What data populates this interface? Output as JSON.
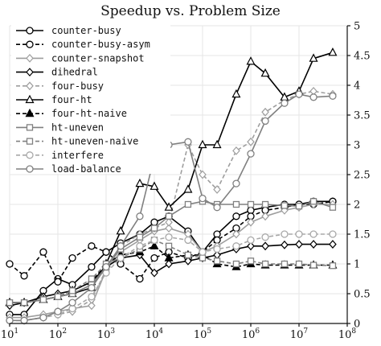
{
  "chart_data": {
    "type": "line",
    "title": "Speedup vs. Problem Size",
    "xlabel": "",
    "ylabel": "",
    "xscale": "log",
    "xlim": [
      10,
      100000000
    ],
    "ylim": [
      0,
      5
    ],
    "yaxis_position": "right",
    "grid": true,
    "legend_position": "top-left",
    "x_tick_labels": [
      {
        "base": "10",
        "exp": "1"
      },
      {
        "base": "10",
        "exp": "2"
      },
      {
        "base": "10",
        "exp": "3"
      },
      {
        "base": "10",
        "exp": "4"
      },
      {
        "base": "10",
        "exp": "5"
      },
      {
        "base": "10",
        "exp": "6"
      },
      {
        "base": "10",
        "exp": "7"
      },
      {
        "base": "10",
        "exp": "8"
      }
    ],
    "x_tick_values": [
      10,
      100,
      1000,
      10000,
      100000,
      1000000,
      10000000,
      100000000
    ],
    "y_tick_labels": [
      "0",
      "0.5",
      "1",
      "1.5",
      "2",
      "2.5",
      "3",
      "3.5",
      "4",
      "4.5",
      "5"
    ],
    "y_tick_values": [
      0,
      0.5,
      1,
      1.5,
      2,
      2.5,
      3,
      3.5,
      4,
      4.5,
      5
    ],
    "series": [
      {
        "name": "counter-busy",
        "color": "#000000",
        "dash": "solid",
        "marker": "circle",
        "marker_fill": "white",
        "x": [
          10,
          20,
          50,
          100,
          200,
          500,
          1000,
          2000,
          5000,
          10000,
          20000,
          50000,
          100000,
          200000,
          500000,
          1000000,
          2000000,
          5000000,
          10000000,
          20000000,
          50000000
        ],
        "y": [
          0.15,
          0.15,
          0.55,
          0.75,
          0.65,
          0.95,
          1.2,
          1.35,
          1.5,
          1.7,
          1.8,
          1.55,
          1.2,
          1.5,
          1.8,
          1.9,
          1.95,
          2.0,
          2.0,
          2.05,
          2.05
        ]
      },
      {
        "name": "counter-busy-asym",
        "color": "#000000",
        "dash": "dashed",
        "marker": "circle",
        "marker_fill": "white",
        "x": [
          10,
          20,
          50,
          100,
          200,
          500,
          1000,
          2000,
          5000,
          10000,
          20000,
          50000,
          100000,
          200000,
          500000,
          1000000,
          2000000,
          5000000,
          10000000,
          20000000,
          50000000
        ],
        "y": [
          1.0,
          0.8,
          1.2,
          0.7,
          1.1,
          1.3,
          1.2,
          1.0,
          0.75,
          1.1,
          1.2,
          1.1,
          1.2,
          1.4,
          1.6,
          1.8,
          1.9,
          1.95,
          2.0,
          2.0,
          2.05
        ]
      },
      {
        "name": "counter-snapshot",
        "color": "#9e9e9e",
        "dash": "solid",
        "marker": "diamond",
        "marker_fill": "white",
        "x": [
          10,
          20,
          50,
          100,
          200,
          500,
          1000,
          2000,
          5000,
          10000,
          20000,
          50000,
          100000,
          200000,
          500000,
          1000000,
          2000000,
          5000000,
          10000000,
          20000000,
          50000000
        ],
        "y": [
          0.1,
          0.1,
          0.15,
          0.2,
          0.25,
          0.3,
          0.9,
          1.2,
          1.4,
          1.55,
          1.6,
          1.5,
          1.2,
          1.3,
          1.5,
          1.7,
          1.8,
          1.9,
          1.95,
          2.0,
          2.0
        ]
      },
      {
        "name": "dihedral",
        "color": "#000000",
        "dash": "solid",
        "marker": "diamond",
        "marker_fill": "white",
        "x": [
          10,
          20,
          50,
          100,
          200,
          500,
          1000,
          2000,
          5000,
          10000,
          20000,
          50000,
          100000,
          200000,
          500000,
          1000000,
          2000000,
          5000000,
          10000000,
          20000000,
          50000000
        ],
        "y": [
          0.3,
          0.35,
          0.45,
          0.5,
          0.55,
          0.7,
          0.95,
          1.1,
          1.15,
          0.85,
          1.0,
          1.05,
          1.1,
          1.15,
          1.25,
          1.3,
          1.3,
          1.32,
          1.33,
          1.33,
          1.33
        ]
      },
      {
        "name": "four-busy",
        "color": "#9e9e9e",
        "dash": "dashed",
        "marker": "diamond",
        "marker_fill": "white",
        "x": [
          10,
          20,
          50,
          100,
          200,
          500,
          1000,
          2000,
          5000,
          10000,
          20000,
          50000,
          100000,
          200000,
          500000,
          1000000,
          2000000,
          5000000,
          10000000,
          20000000,
          50000000
        ],
        "y": [
          0.05,
          0.05,
          0.1,
          0.15,
          0.2,
          0.4,
          0.9,
          1.3,
          1.5,
          1.6,
          1.7,
          3.0,
          2.5,
          2.25,
          2.9,
          3.05,
          3.55,
          3.75,
          3.85,
          3.9,
          3.85
        ]
      },
      {
        "name": "four-ht",
        "color": "#000000",
        "dash": "solid",
        "marker": "triangle",
        "marker_fill": "white",
        "x": [
          10,
          20,
          50,
          100,
          200,
          500,
          1000,
          2000,
          5000,
          10000,
          20000,
          50000,
          100000,
          200000,
          500000,
          1000000,
          2000000,
          5000000,
          10000000,
          20000000,
          50000000
        ],
        "y": [
          0.35,
          0.35,
          0.4,
          0.45,
          0.5,
          0.6,
          1.0,
          1.55,
          2.35,
          2.3,
          1.95,
          2.25,
          3.0,
          3.0,
          3.85,
          4.4,
          4.2,
          3.8,
          3.9,
          4.45,
          4.55
        ]
      },
      {
        "name": "four-ht-naive",
        "color": "#000000",
        "dash": "dashed",
        "marker": "triangle",
        "marker_fill": "#000000",
        "x": [
          10,
          20,
          50,
          100,
          200,
          500,
          1000,
          2000,
          5000,
          10000,
          20000,
          50000,
          100000,
          200000,
          500000,
          1000000,
          2000000,
          5000000,
          10000000,
          20000000,
          50000000
        ],
        "y": [
          0.35,
          0.35,
          0.4,
          0.45,
          0.55,
          0.7,
          1.0,
          1.15,
          1.2,
          1.3,
          1.1,
          1.15,
          1.15,
          1.0,
          0.95,
          1.0,
          0.98,
          0.98,
          0.98,
          0.98,
          0.98
        ]
      },
      {
        "name": "ht-uneven",
        "color": "#808080",
        "dash": "solid",
        "marker": "square",
        "marker_fill": "white",
        "x": [
          10,
          20,
          50,
          100,
          200,
          500,
          1000,
          2000,
          5000,
          10000,
          20000,
          50000,
          100000,
          200000,
          500000,
          1000000,
          2000000,
          5000000,
          10000000,
          20000000,
          50000000
        ],
        "y": [
          0.35,
          0.35,
          0.4,
          0.45,
          0.5,
          0.65,
          0.95,
          1.25,
          1.45,
          1.6,
          1.8,
          2.0,
          2.05,
          2.0,
          2.0,
          2.0,
          2.0,
          1.98,
          1.97,
          2.05,
          1.95
        ]
      },
      {
        "name": "ht-uneven-naive",
        "color": "#808080",
        "dash": "dashed",
        "marker": "square",
        "marker_fill": "white",
        "x": [
          10,
          20,
          50,
          100,
          200,
          500,
          1000,
          2000,
          5000,
          10000,
          20000,
          50000,
          100000,
          200000,
          500000,
          1000000,
          2000000,
          5000000,
          10000000,
          20000000,
          50000000
        ],
        "y": [
          0.35,
          0.35,
          0.4,
          0.45,
          0.55,
          0.75,
          1.0,
          1.1,
          1.25,
          1.4,
          1.3,
          1.15,
          1.1,
          1.05,
          1.0,
          1.05,
          1.0,
          1.0,
          1.0,
          0.98,
          0.97
        ]
      },
      {
        "name": "interfere",
        "color": "#a8a8a8",
        "dash": "dashed",
        "marker": "circle",
        "marker_fill": "white",
        "x": [
          10,
          20,
          50,
          100,
          200,
          500,
          1000,
          2000,
          5000,
          10000,
          20000,
          50000,
          100000,
          200000,
          500000,
          1000000,
          2000000,
          5000000,
          10000000,
          20000000,
          50000000
        ],
        "y": [
          0.05,
          0.05,
          0.1,
          0.15,
          0.25,
          0.45,
          0.85,
          1.1,
          1.3,
          1.4,
          1.45,
          1.4,
          1.2,
          1.25,
          1.3,
          1.4,
          1.45,
          1.5,
          1.5,
          1.5,
          1.5
        ]
      },
      {
        "name": "load-balance",
        "color": "#808080",
        "dash": "solid",
        "marker": "circle",
        "marker_fill": "white",
        "x": [
          10,
          20,
          50,
          100,
          200,
          500,
          1000,
          2000,
          5000,
          10000,
          20000,
          50000,
          100000,
          200000,
          500000,
          1000000,
          2000000,
          5000000,
          10000000,
          20000000,
          50000000
        ],
        "y": [
          0.05,
          0.05,
          0.1,
          0.2,
          0.35,
          0.6,
          0.95,
          1.3,
          1.8,
          2.8,
          3.0,
          3.05,
          2.1,
          1.95,
          2.35,
          2.85,
          3.4,
          3.7,
          3.85,
          3.8,
          3.82
        ]
      }
    ]
  }
}
